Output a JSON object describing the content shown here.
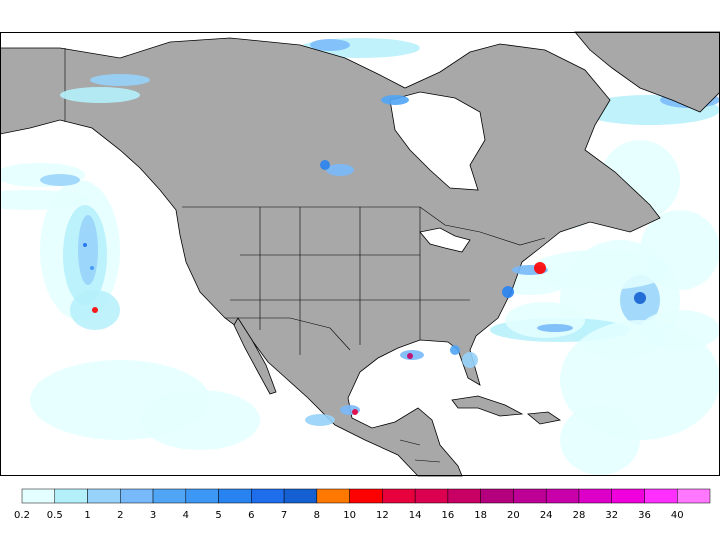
{
  "colorbar": {
    "levels": [
      0.2,
      0.5,
      1,
      2,
      3,
      4,
      5,
      6,
      7,
      8,
      10,
      12,
      14,
      16,
      18,
      20,
      24,
      28,
      32,
      36,
      40
    ],
    "colors": [
      "#e4ffff",
      "#b4f0fa",
      "#96d2fa",
      "#78b9fa",
      "#50a5f5",
      "#3c97f5",
      "#2883f0",
      "#1e6eeb",
      "#1460d2",
      "#ff7800",
      "#ff0000",
      "#e6003c",
      "#dc0050",
      "#c80064",
      "#b4007d",
      "#be0096",
      "#c800aa",
      "#dc00c8",
      "#f000dc",
      "#ff30ff",
      "#ff78ff"
    ]
  }
}
